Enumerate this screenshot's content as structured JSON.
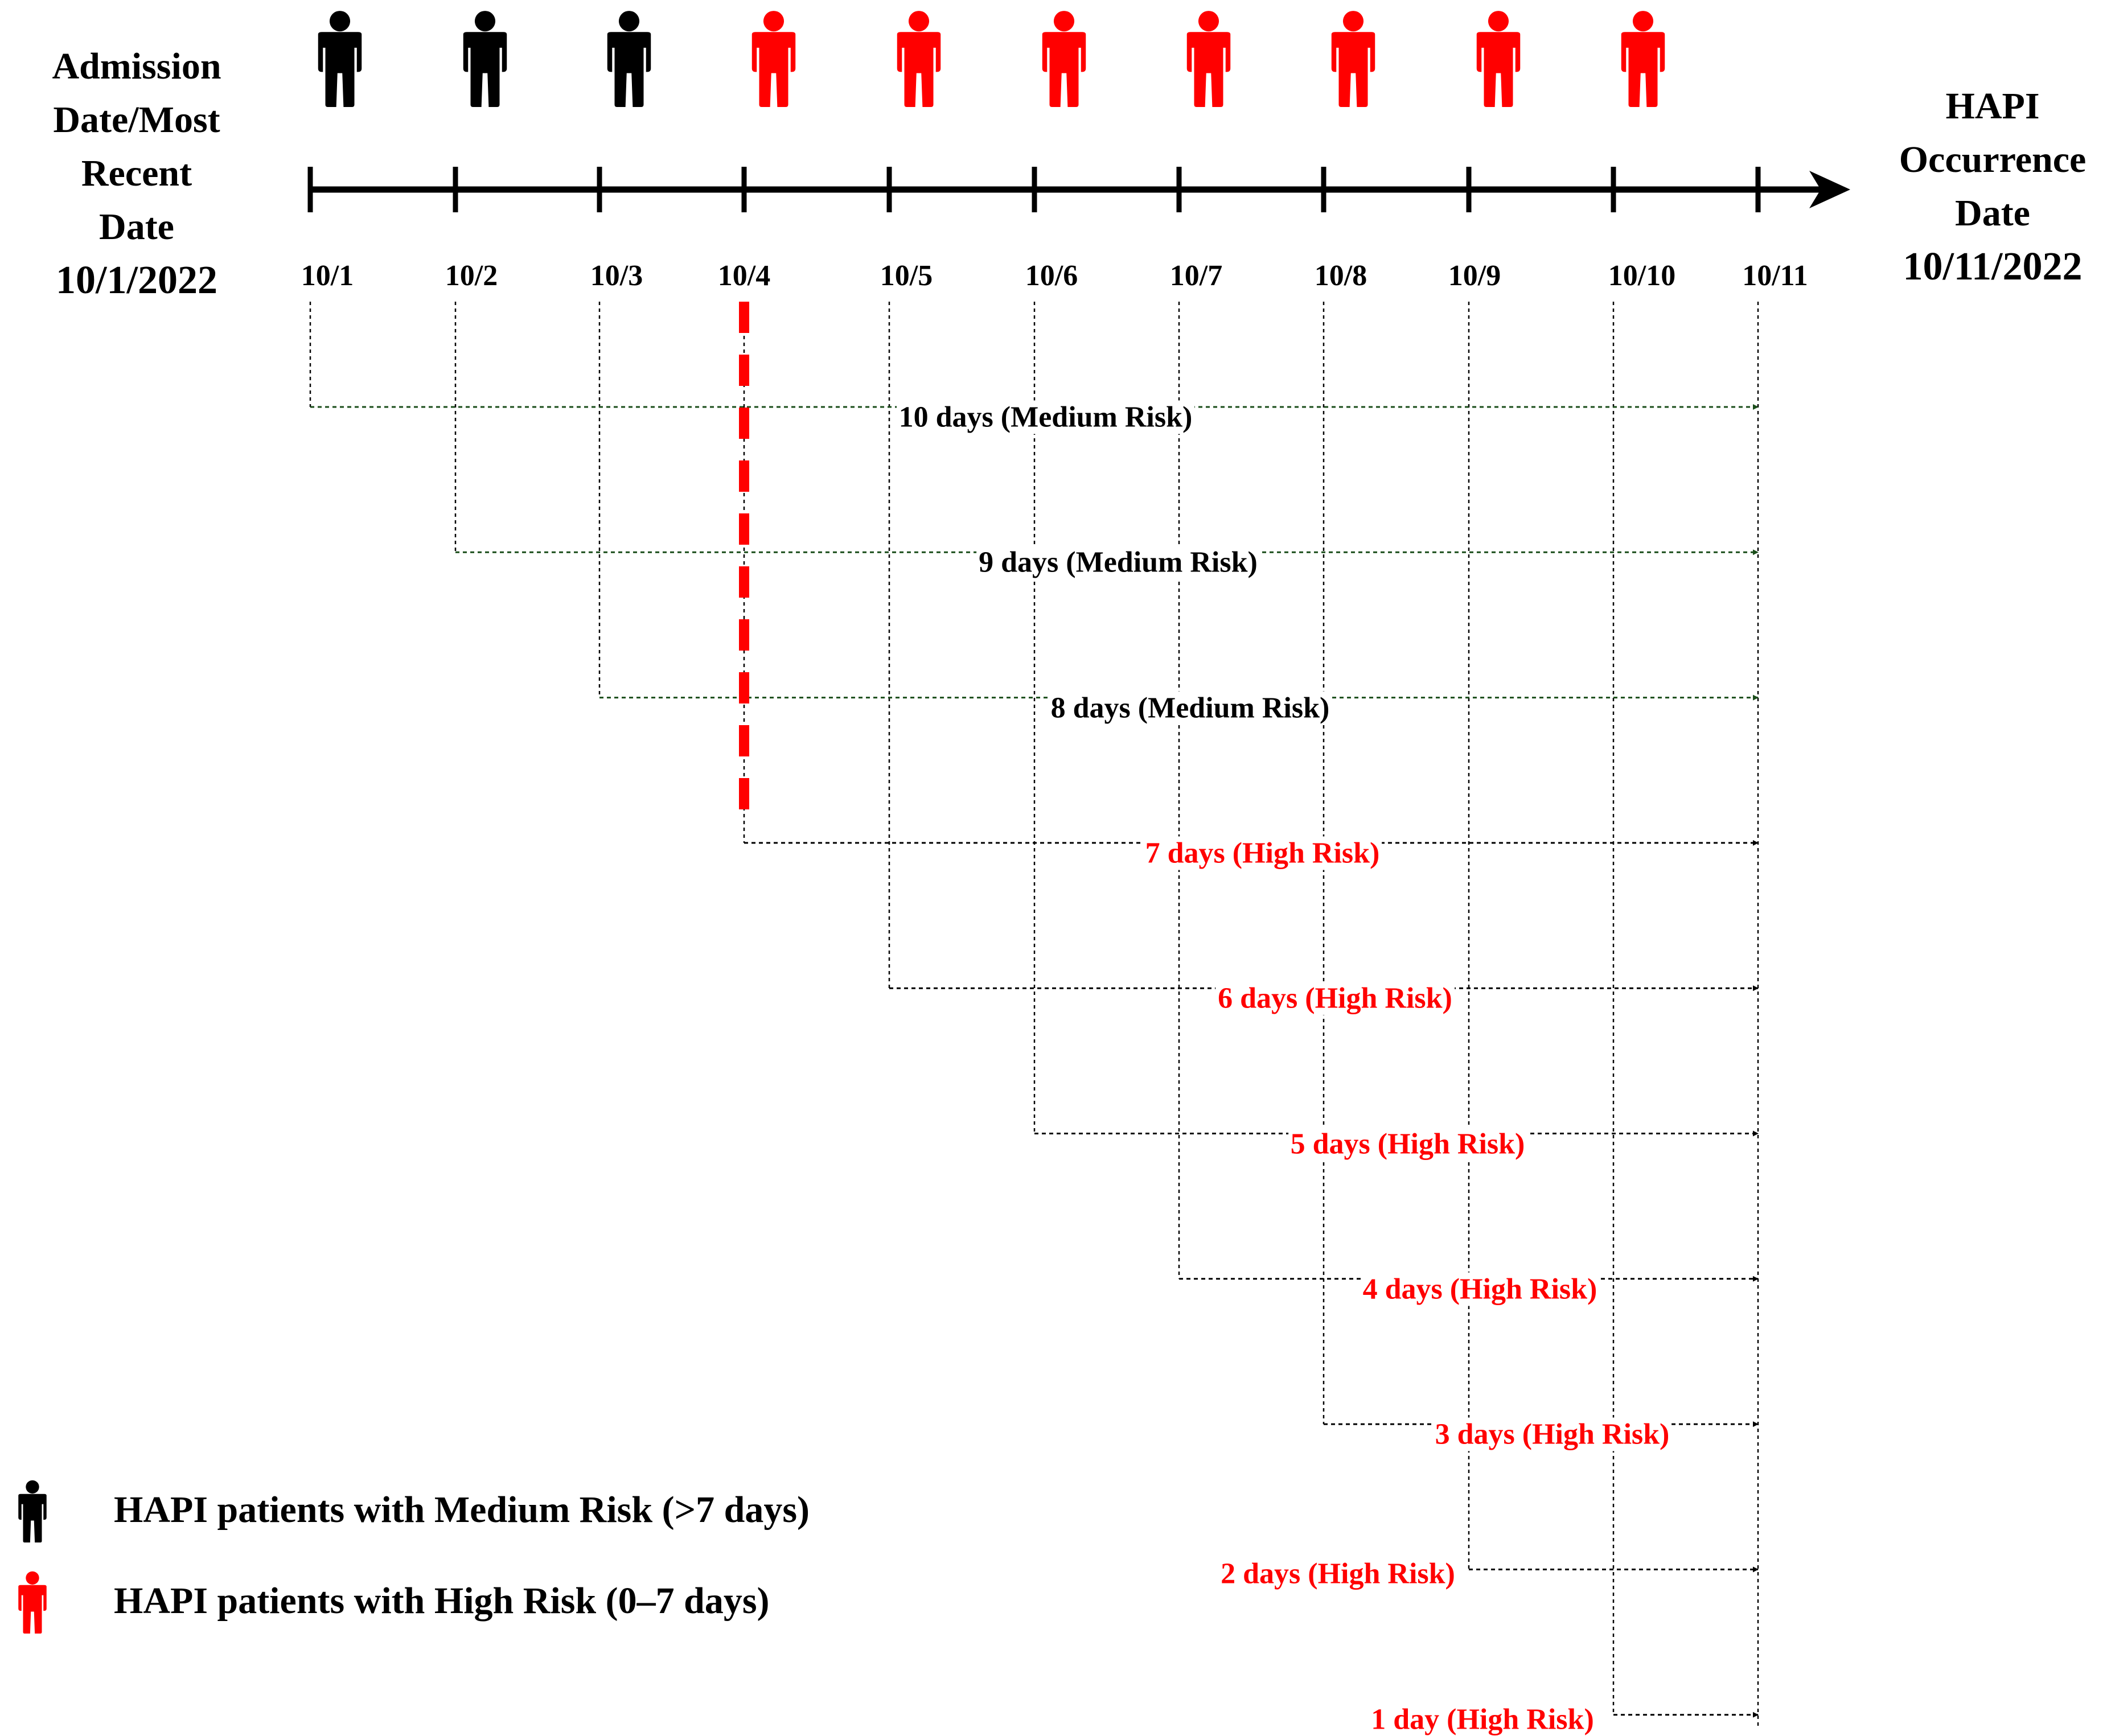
{
  "colors": {
    "medium": "#000000",
    "high": "#ff0000",
    "arrow_medium": "#1a4d1a",
    "arrow_high": "#000000"
  },
  "left_title": [
    "Admission",
    "Date/Most",
    "Recent",
    "Date"
  ],
  "left_date": "10/1/2022",
  "right_title": [
    "HAPI",
    "Occurrence",
    "Date"
  ],
  "right_date": "10/11/2022",
  "timeline": {
    "dates": [
      "10/1",
      "10/2",
      "10/3",
      "10/4",
      "10/5",
      "10/6",
      "10/7",
      "10/8",
      "10/9",
      "10/10",
      "10/11"
    ],
    "patients": [
      "medium",
      "medium",
      "medium",
      "high",
      "high",
      "high",
      "high",
      "high",
      "high",
      "high"
    ]
  },
  "durations": [
    {
      "start": "10/1",
      "days": 10,
      "label": "10 days (Medium Risk)",
      "risk": "medium"
    },
    {
      "start": "10/2",
      "days": 9,
      "label": "9 days (Medium Risk)",
      "risk": "medium"
    },
    {
      "start": "10/3",
      "days": 8,
      "label": "8 days (Medium Risk)",
      "risk": "medium"
    },
    {
      "start": "10/4",
      "days": 7,
      "label": "7 days (High Risk)",
      "risk": "high"
    },
    {
      "start": "10/5",
      "days": 6,
      "label": "6 days (High Risk)",
      "risk": "high"
    },
    {
      "start": "10/6",
      "days": 5,
      "label": "5 days (High Risk)",
      "risk": "high"
    },
    {
      "start": "10/7",
      "days": 4,
      "label": "4 days (High Risk)",
      "risk": "high"
    },
    {
      "start": "10/8",
      "days": 3,
      "label": "3 days (High Risk)",
      "risk": "high"
    },
    {
      "start": "10/9",
      "days": 2,
      "label": "2 days (High Risk)",
      "risk": "high"
    },
    {
      "start": "10/10",
      "days": 1,
      "label": "1 day (High Risk)",
      "risk": "high"
    }
  ],
  "threshold_date": "10/4",
  "legend": {
    "medium": "HAPI patients with Medium Risk (>7 days)",
    "high": "HAPI patients with High Risk (0–7 days)"
  }
}
